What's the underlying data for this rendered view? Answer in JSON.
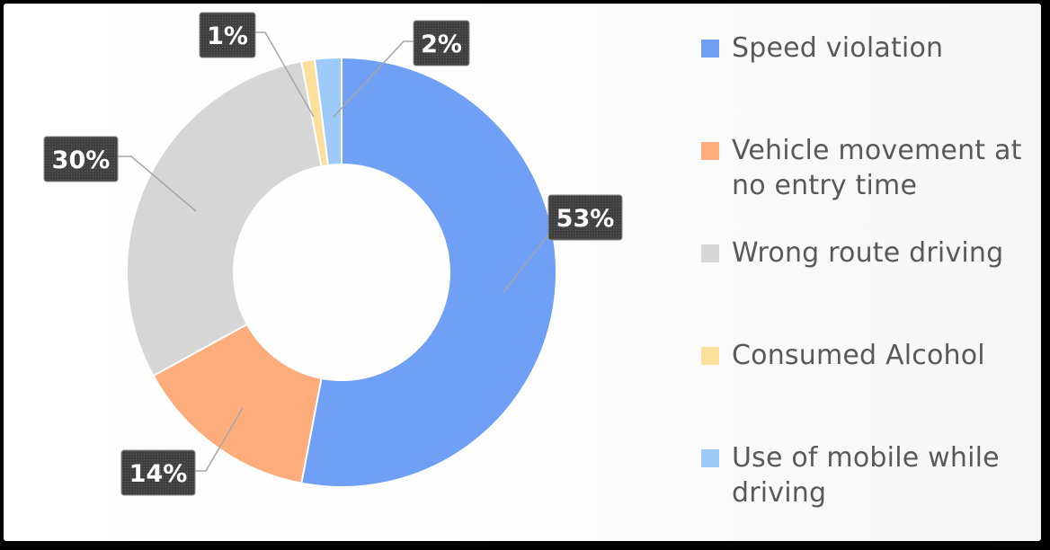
{
  "chart_data": {
    "type": "pie",
    "style": "donut",
    "title": "",
    "categories": [
      "Speed violation",
      "Vehicle movement at no entry time",
      "Wrong route driving",
      "Consumed Alcohol",
      "Use of mobile while driving"
    ],
    "values": [
      53,
      14,
      30,
      1,
      2
    ],
    "data_labels": [
      "53%",
      "14%",
      "30%",
      "1%",
      "2%"
    ],
    "colors": [
      "#6fa0f5",
      "#fdac7c",
      "#d6d6d6",
      "#fddf9c",
      "#9dcaf8"
    ],
    "legend_position": "right",
    "start_angle_deg": 0,
    "direction": "clockwise"
  }
}
